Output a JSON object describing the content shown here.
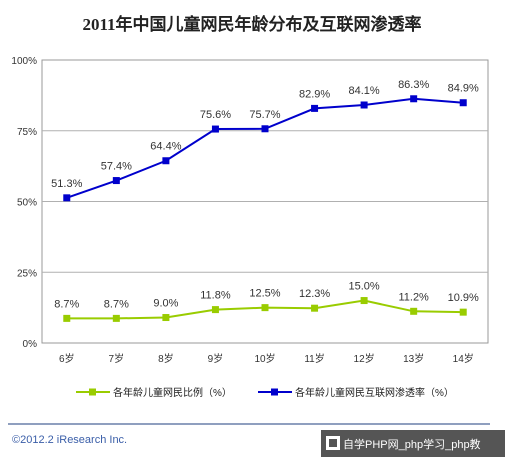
{
  "chart_data": {
    "type": "line",
    "title": "2011年中国儿童网民年龄分布及互联网渗透率",
    "categories": [
      "6岁",
      "7岁",
      "8岁",
      "9岁",
      "10岁",
      "11岁",
      "12岁",
      "13岁",
      "14岁"
    ],
    "y_ticks": [
      "0%",
      "25%",
      "50%",
      "75%",
      "100%"
    ],
    "ylim": [
      0,
      100
    ],
    "grid": true,
    "legend_position": "bottom",
    "series": [
      {
        "name": "各年龄儿童网民比例（%）",
        "color": "#99cc00",
        "marker": "square",
        "values": [
          8.7,
          8.7,
          9.0,
          11.8,
          12.5,
          12.3,
          15.0,
          11.2,
          10.9
        ],
        "labels": [
          "8.7%",
          "8.7%",
          "9.0%",
          "11.8%",
          "12.5%",
          "12.3%",
          "15.0%",
          "11.2%",
          "10.9%"
        ]
      },
      {
        "name": "各年龄儿童网民互联网渗透率（%）",
        "color": "#0000cc",
        "marker": "square",
        "values": [
          51.3,
          57.4,
          64.4,
          75.6,
          75.7,
          82.9,
          84.1,
          86.3,
          84.9
        ],
        "labels": [
          "51.3%",
          "57.4%",
          "64.4%",
          "75.6%",
          "75.7%",
          "82.9%",
          "84.1%",
          "86.3%",
          "84.9%"
        ]
      }
    ]
  },
  "footer": {
    "copyright": "©2012.2 iResearch Inc.",
    "watermark": "自学PHP网_php学习_php教"
  },
  "colors": {
    "divider": "#1f3f7f",
    "grid": "#b0b0b0",
    "watermark_bg": "#555555"
  }
}
